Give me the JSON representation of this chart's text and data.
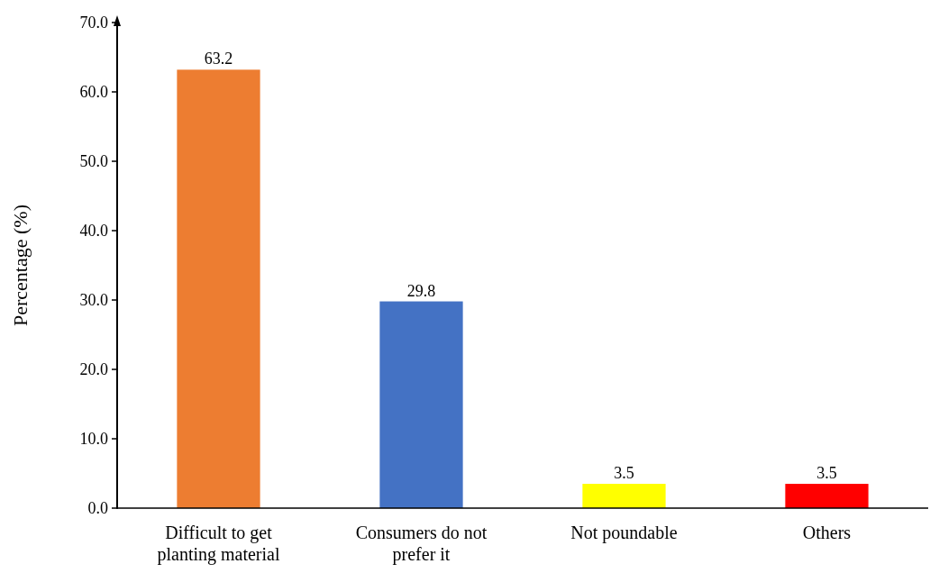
{
  "chart_data": {
    "type": "bar",
    "ylabel": "Percentage (%)",
    "categories": [
      "Difficult to get planting material",
      "Consumers do not prefer it",
      "Not poundable",
      "Others"
    ],
    "values": [
      63.2,
      29.8,
      3.5,
      3.5
    ],
    "colors": [
      "#ed7d31",
      "#4472c4",
      "#ffff00",
      "#ff0000"
    ],
    "ylim": [
      0,
      70
    ],
    "yticks": [
      {
        "value": 0,
        "label": "0.0"
      },
      {
        "value": 10,
        "label": "10.0"
      },
      {
        "value": 20,
        "label": "20.0"
      },
      {
        "value": 30,
        "label": "30.0"
      },
      {
        "value": 40,
        "label": "40.0"
      },
      {
        "value": 50,
        "label": "50.0"
      },
      {
        "value": 60,
        "label": "60.0"
      },
      {
        "value": 70,
        "label": "70.0"
      }
    ],
    "data_labels": true,
    "grid": false
  }
}
